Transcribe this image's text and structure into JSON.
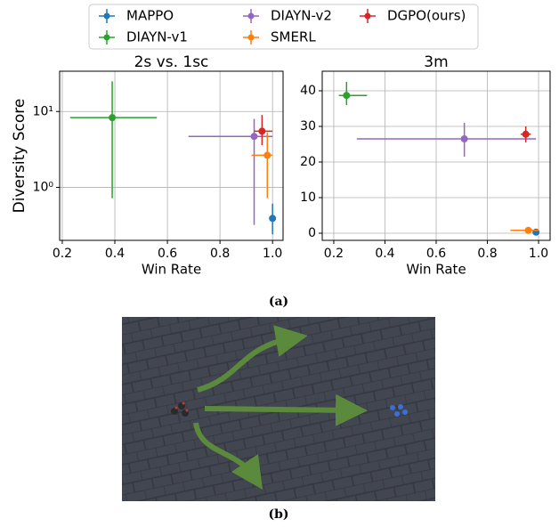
{
  "chart_data": [
    {
      "type": "errorbar",
      "title": "2s vs. 1sc",
      "xlabel": "Win Rate",
      "ylabel": "Diversity Score",
      "xlim": [
        0.19,
        1.04
      ],
      "ylim": [
        0.2,
        34
      ],
      "yscale": "log",
      "grid": true,
      "xticks": [
        0.2,
        0.4,
        0.6,
        0.8,
        {
          "value": 1,
          "label": "1.0"
        }
      ],
      "yticks": [
        {
          "value": 1,
          "label": "10⁰"
        },
        {
          "value": 10,
          "label": "10¹"
        }
      ],
      "series": [
        {
          "name": "MAPPO",
          "color": "#1f77b4",
          "x": 1.0,
          "y": 0.39,
          "y_range": [
            0.24,
            0.61
          ]
        },
        {
          "name": "DIAYN-v1",
          "color": "#2ca02c",
          "x": 0.39,
          "y": 8.3,
          "x_range": [
            0.23,
            0.56
          ],
          "y_range": [
            0.72,
            25
          ]
        },
        {
          "name": "DIAYN-v2",
          "color": "#9467bd",
          "x": 0.93,
          "y": 4.7,
          "x_range": [
            0.68,
            1.0
          ],
          "y_range": [
            0.32,
            8
          ]
        },
        {
          "name": "SMERL",
          "color": "#ff7f0e",
          "x": 0.98,
          "y": 2.65,
          "x_range": [
            0.92,
            1.0
          ],
          "y_range": [
            0.72,
            5.3
          ]
        },
        {
          "name": "DGPO(ours)",
          "color": "#d62728",
          "x": 0.96,
          "y": 5.5,
          "x_range": [
            0.93,
            1.0
          ],
          "y_range": [
            3.6,
            9
          ]
        }
      ]
    },
    {
      "type": "errorbar",
      "title": "3m",
      "xlabel": "Win Rate",
      "xlim": [
        0.155,
        1.045
      ],
      "ylim": [
        -2,
        45.5
      ],
      "grid": true,
      "xticks": [
        0.2,
        0.4,
        0.6,
        0.8,
        {
          "value": 1,
          "label": "1.0"
        }
      ],
      "yticks": [
        0,
        10,
        20,
        30,
        40
      ],
      "series": [
        {
          "color": "#1f77b4",
          "x": 0.99,
          "y": 0.3
        },
        {
          "color": "#2ca02c",
          "x": 0.25,
          "y": 38.7,
          "x_range": [
            0.22,
            0.33
          ],
          "y_range": [
            36,
            42.5
          ]
        },
        {
          "color": "#9467bd",
          "x": 0.71,
          "y": 26.5,
          "x_range": [
            0.29,
            0.99
          ],
          "y_range": [
            21.5,
            31
          ]
        },
        {
          "color": "#ff7f0e",
          "x": 0.96,
          "y": 0.8,
          "x_range": [
            0.89,
            1.0
          ]
        },
        {
          "color": "#d62728",
          "x": 0.95,
          "y": 27.8,
          "x_range": [
            0.93,
            0.97
          ],
          "y_range": [
            25.5,
            30
          ]
        }
      ]
    }
  ],
  "captions": [
    "(a)",
    "(b)"
  ]
}
